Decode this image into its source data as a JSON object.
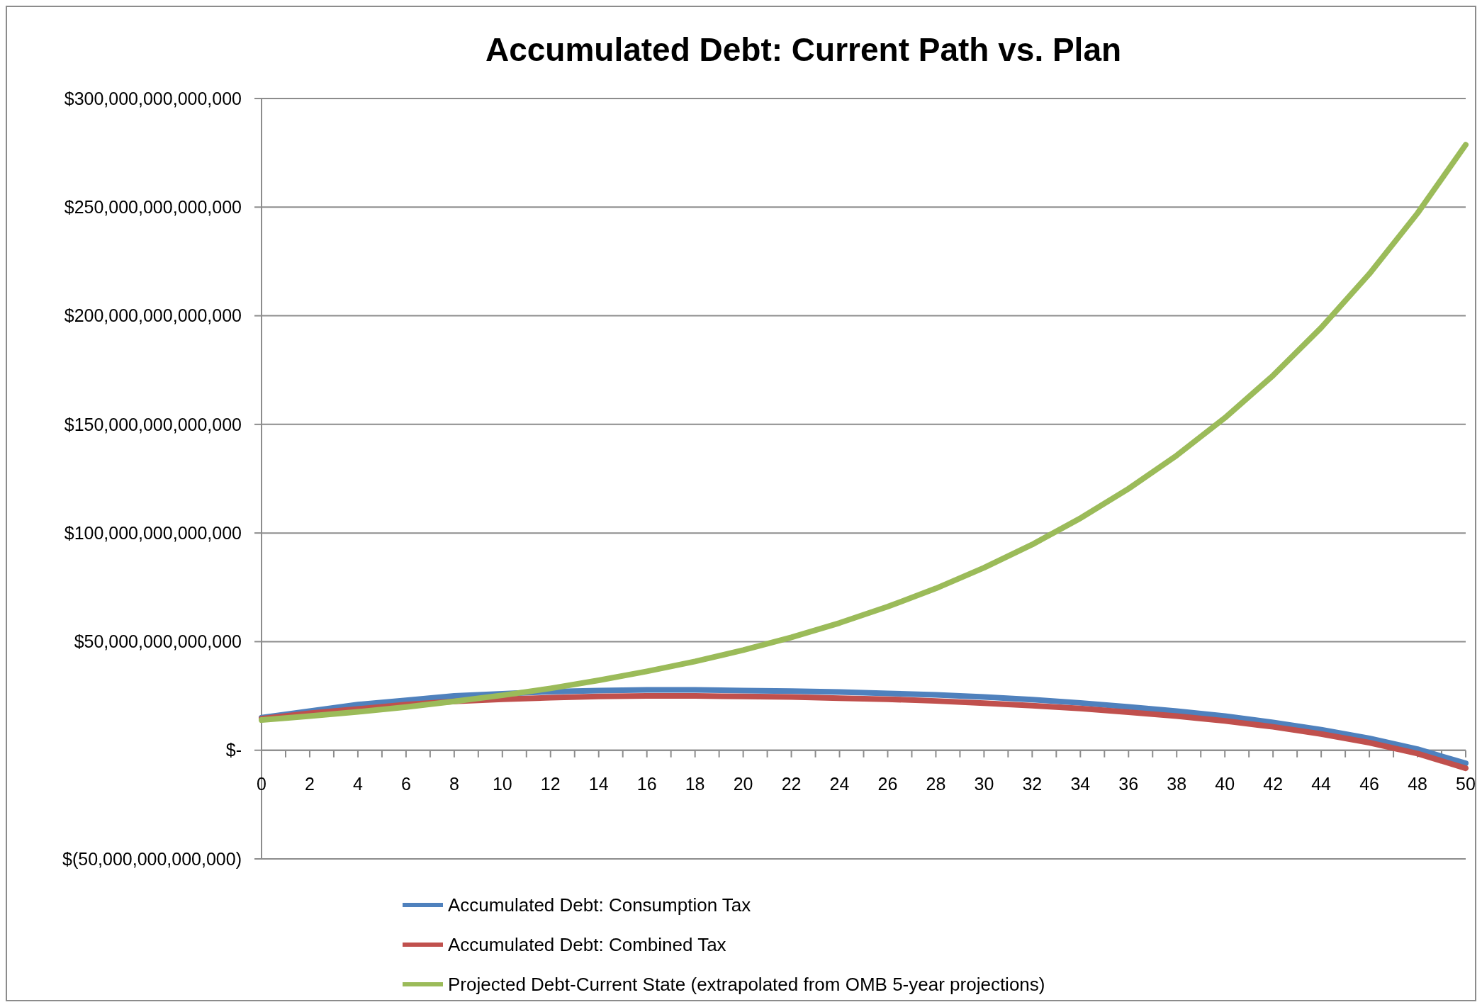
{
  "chart_data": {
    "type": "line",
    "title": "Accumulated Debt: Current Path vs. Plan",
    "x": [
      0,
      2,
      4,
      6,
      8,
      10,
      12,
      14,
      16,
      18,
      20,
      22,
      24,
      26,
      28,
      30,
      32,
      34,
      36,
      38,
      40,
      42,
      44,
      46,
      48,
      50
    ],
    "series": [
      {
        "name": "Accumulated Debt: Consumption Tax",
        "color": "#4f81bd",
        "values": [
          15000000000000.0,
          18000000000000.0,
          21000000000000.0,
          23000000000000.0,
          25000000000000.0,
          26000000000000.0,
          27000000000000.0,
          27500000000000.0,
          27800000000000.0,
          27800000000000.0,
          27500000000000.0,
          27200000000000.0,
          26800000000000.0,
          26200000000000.0,
          25500000000000.0,
          24500000000000.0,
          23300000000000.0,
          21800000000000.0,
          20000000000000.0,
          18000000000000.0,
          15700000000000.0,
          12800000000000.0,
          9500000000000.0,
          5500000000000.0,
          500000000000.0,
          -6000000000000.0
        ]
      },
      {
        "name": "Accumulated Debt: Combined Tax",
        "color": "#c0504d",
        "values": [
          14500000000000.0,
          17000000000000.0,
          19000000000000.0,
          21000000000000.0,
          22500000000000.0,
          23500000000000.0,
          24200000000000.0,
          24800000000000.0,
          25000000000000.0,
          25000000000000.0,
          24800000000000.0,
          24500000000000.0,
          24000000000000.0,
          23500000000000.0,
          22700000000000.0,
          21700000000000.0,
          20500000000000.0,
          19200000000000.0,
          17500000000000.0,
          15700000000000.0,
          13500000000000.0,
          10800000000000.0,
          7500000000000.0,
          3500000000000.0,
          -1500000000000.0,
          -8300000000000.0
        ]
      },
      {
        "name": "Projected Debt-Current State (extrapolated from OMB 5-year projections)",
        "color": "#9bbb59",
        "values": [
          13900000000000.0,
          15700000000000.0,
          17700000000000.0,
          19900000000000.0,
          22500000000000.0,
          25300000000000.0,
          28500000000000.0,
          32200000000000.0,
          36300000000000.0,
          40900000000000.0,
          46100000000000.0,
          52000000000000.0,
          58600000000000.0,
          66100000000000.0,
          74500000000000.0,
          84000000000000.0,
          94700000000000.0,
          106800000000000.0,
          120400000000000.0,
          135700000000000.0,
          153000000000000.0,
          172500000000000.0,
          194500000000000.0,
          219300000000000.0,
          247200000000000.0,
          278700000000000.0
        ]
      }
    ],
    "xlim": [
      0,
      50
    ],
    "xticks": [
      0,
      {
        "value": 1,
        "label": null
      },
      2,
      {
        "value": 3,
        "label": null
      },
      4,
      {
        "value": 5,
        "label": null
      },
      6,
      {
        "value": 7,
        "label": null
      },
      8,
      {
        "value": 9,
        "label": null
      },
      10,
      {
        "value": 11,
        "label": null
      },
      12,
      {
        "value": 13,
        "label": null
      },
      14,
      {
        "value": 15,
        "label": null
      },
      16,
      {
        "value": 17,
        "label": null
      },
      18,
      {
        "value": 19,
        "label": null
      },
      20,
      {
        "value": 21,
        "label": null
      },
      22,
      {
        "value": 23,
        "label": null
      },
      24,
      {
        "value": 25,
        "label": null
      },
      26,
      {
        "value": 27,
        "label": null
      },
      28,
      {
        "value": 29,
        "label": null
      },
      30,
      {
        "value": 31,
        "label": null
      },
      32,
      {
        "value": 33,
        "label": null
      },
      34,
      {
        "value": 35,
        "label": null
      },
      36,
      {
        "value": 37,
        "label": null
      },
      38,
      {
        "value": 39,
        "label": null
      },
      40,
      {
        "value": 41,
        "label": null
      },
      42,
      {
        "value": 43,
        "label": null
      },
      44,
      {
        "value": 45,
        "label": null
      },
      46,
      {
        "value": 47,
        "label": null
      },
      48,
      {
        "value": 49,
        "label": null
      },
      50
    ],
    "ylim": [
      -50000000000000.0,
      300000000000000.0
    ],
    "yticks": [
      {
        "value": -50000000000000.0,
        "label": "$(50,000,000,000,000)"
      },
      {
        "value": 0,
        "label": "$-"
      },
      {
        "value": 50000000000000.0,
        "label": "$50,000,000,000,000"
      },
      {
        "value": 100000000000000.0,
        "label": "$100,000,000,000,000"
      },
      {
        "value": 150000000000000.0,
        "label": "$150,000,000,000,000"
      },
      {
        "value": 200000000000000.0,
        "label": "$200,000,000,000,000"
      },
      {
        "value": 250000000000000.0,
        "label": "$250,000,000,000,000"
      },
      {
        "value": 300000000000000.0,
        "label": "$300,000,000,000,000"
      }
    ],
    "grid": "y",
    "legend": "bottom",
    "marker": "none",
    "line_style": "solid"
  }
}
